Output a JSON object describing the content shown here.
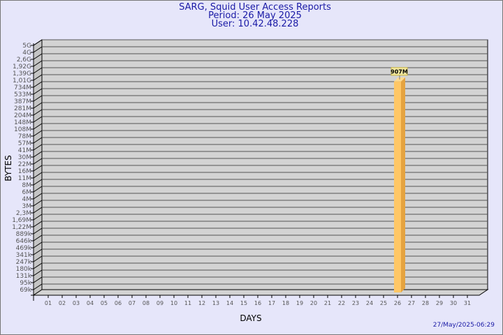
{
  "chart_data": {
    "type": "bar",
    "title": [
      "SARG, Squid User Access Reports",
      "Period: 26 May 2025",
      "User: 10.42.48.228"
    ],
    "xlabel": "DAYS",
    "ylabel": "BYTES",
    "y_scale": "log",
    "grid": true,
    "y_tick_labels": [
      "5G",
      "4G",
      "2,6G",
      "1,92G",
      "1,39G",
      "1,01G",
      "734M",
      "533M",
      "387M",
      "281M",
      "204M",
      "148M",
      "108M",
      "78M",
      "57M",
      "41M",
      "30M",
      "22M",
      "16M",
      "11M",
      "8M",
      "6M",
      "4M",
      "3M",
      "2,3M",
      "1,69M",
      "1,22M",
      "889k",
      "646k",
      "469k",
      "341k",
      "247k",
      "180k",
      "131k",
      "95k",
      "69k"
    ],
    "categories": [
      "01",
      "02",
      "03",
      "04",
      "05",
      "06",
      "07",
      "08",
      "09",
      "10",
      "11",
      "12",
      "13",
      "14",
      "15",
      "16",
      "17",
      "18",
      "19",
      "20",
      "21",
      "22",
      "23",
      "24",
      "25",
      "26",
      "27",
      "28",
      "29",
      "30",
      "31"
    ],
    "bars": [
      {
        "category": "26",
        "value_mb": 907,
        "label": "907M"
      }
    ],
    "colors": {
      "bar_front": "#ffc766",
      "bar_side": "#e5a33f",
      "bar_top": "#ffdb8f",
      "wall": "#d3d3d3",
      "side_wall": "#c4c4c4"
    }
  },
  "footer": {
    "timestamp": "27/May/2025-06:29"
  }
}
